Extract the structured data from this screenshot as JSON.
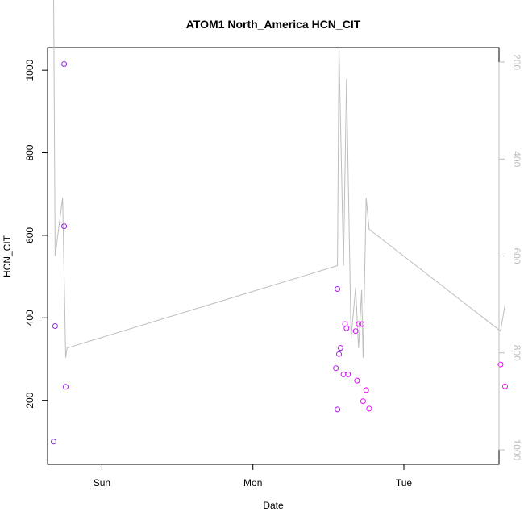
{
  "chart_data": {
    "type": "scatter",
    "title": "ATOM1 North_America HCN_CIT",
    "xlabel": "Date",
    "ylabel": "HCN_CIT",
    "x_ticks": [
      {
        "label": "Sun",
        "value": 0
      },
      {
        "label": "Mon",
        "value": 1
      },
      {
        "label": "Tue",
        "value": 2
      }
    ],
    "xlim": [
      -0.36,
      2.63
    ],
    "y_ticks": [
      200,
      400,
      600,
      800,
      1000
    ],
    "ylim": [
      45,
      1055
    ],
    "secondary_y_ticks": [
      200,
      400,
      600,
      800,
      1000
    ],
    "secondary_ylim": [
      1030,
      170
    ],
    "secondary_y_reversed": true,
    "colors": {
      "line": "#bdbdbd",
      "points_start": "#8a2be2",
      "points_end": "#ff00ff",
      "right_axis": "#bdbdbd",
      "frame": "#000000"
    },
    "series": [
      {
        "kind": "points",
        "x": [
          -0.32,
          -0.31,
          -0.25,
          -0.25,
          -0.24,
          1.56,
          1.56,
          1.57,
          1.58,
          1.55,
          1.61,
          1.6,
          1.62,
          1.63,
          1.68,
          1.69,
          1.72,
          1.73,
          1.7,
          1.75,
          1.77,
          2.64,
          2.67
        ],
        "y": [
          100,
          380,
          1015,
          622,
          233,
          178,
          470,
          312,
          327,
          278,
          385,
          263,
          375,
          263,
          368,
          248,
          385,
          198,
          385,
          225,
          180,
          287,
          234
        ]
      },
      {
        "kind": "line",
        "x": [
          -0.32,
          -0.31,
          -0.26,
          -0.24,
          -0.23,
          1.56,
          1.57,
          1.6,
          1.62,
          1.65,
          1.68,
          1.7,
          1.72,
          1.73,
          1.75,
          1.77,
          2.64,
          2.67
        ],
        "y": [
          50,
          600,
          480,
          810,
          790,
          620,
          170,
          620,
          235,
          770,
          665,
          790,
          670,
          810,
          480,
          545,
          755,
          700
        ]
      }
    ]
  }
}
